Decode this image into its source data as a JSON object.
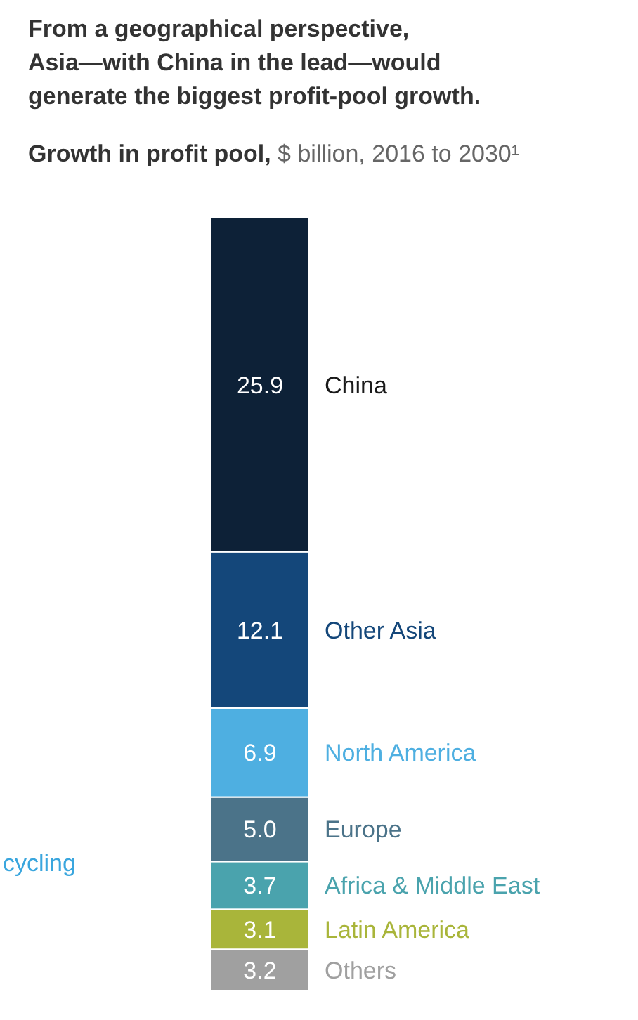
{
  "chart_data": {
    "type": "bar",
    "stacked": true,
    "data_labels": true,
    "title": "From a geographical perspective,\nAsia—with China in the lead—would\ngenerate the biggest profit-pool growth.",
    "subtitle": "Growth in profit pool, $ billion, 2016 to 2030¹",
    "annotations": [
      "cycling"
    ],
    "categories": [
      null
    ],
    "series": [
      {
        "name": "Others",
        "color": "#a0a0a0",
        "values": [
          3.2
        ]
      },
      {
        "name": "Latin America",
        "color": "#a9b53a",
        "values": [
          3.1
        ]
      },
      {
        "name": "Africa & Middle East",
        "color": "#4aa3ad",
        "values": [
          3.7
        ]
      },
      {
        "name": "Europe",
        "color": "#4b7389",
        "values": [
          5.0
        ],
        "value_labels": [
          "5.0"
        ]
      },
      {
        "name": "North America",
        "color": "#4eafe1",
        "values": [
          6.9
        ]
      },
      {
        "name": "Other Asia",
        "color": "#14477a",
        "values": [
          12.1
        ]
      },
      {
        "name": "China",
        "color": "#0d2137",
        "values": [
          25.9
        ]
      }
    ]
  }
}
